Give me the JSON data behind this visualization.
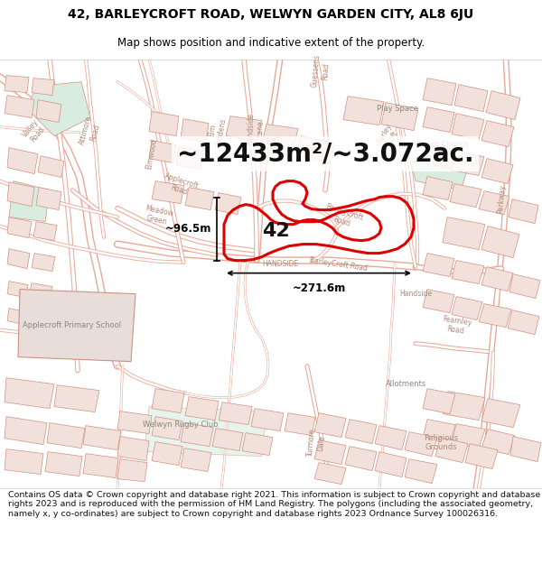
{
  "title_line1": "42, BARLEYCROFT ROAD, WELWYN GARDEN CITY, AL8 6JU",
  "title_line2": "Map shows position and indicative extent of the property.",
  "area_text": "~12433m²/~3.072ac.",
  "label_number": "42",
  "dim_vertical": "~96.5m",
  "dim_horizontal": "~271.6m",
  "footer_text": "Contains OS data © Crown copyright and database right 2021. This information is subject to Crown copyright and database rights 2023 and is reproduced with the permission of HM Land Registry. The polygons (including the associated geometry, namely x, y co-ordinates) are subject to Crown copyright and database rights 2023 Ordnance Survey 100026316.",
  "map_bg_color": "#f7f3f2",
  "road_color": "#e8a898",
  "road_color_dark": "#d08070",
  "building_face": "#f2e0da",
  "building_edge": "#d09080",
  "green_color": "#d8ede0",
  "property_edge_color": "#dd0000",
  "property_edge_width": 2.2,
  "dim_line_color": "#000000",
  "title_fontsize": 10,
  "subtitle_fontsize": 8.5,
  "label_fontsize": 16,
  "area_fontsize": 20,
  "footer_fontsize": 6.8,
  "dim_fontsize": 8.5,
  "map_label_fontsize": 5.5,
  "header_bg": "#ffffff",
  "footer_bg": "#ffffff"
}
